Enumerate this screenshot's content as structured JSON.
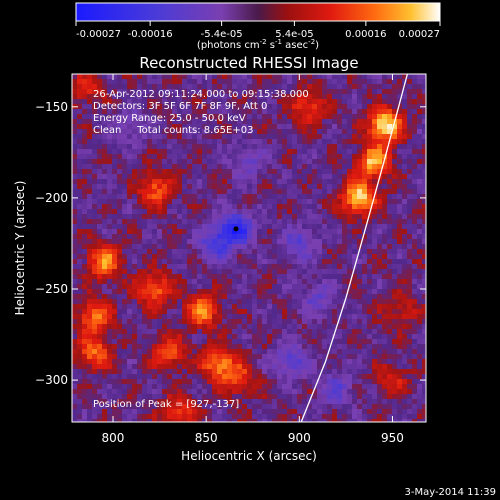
{
  "colorbar": {
    "ticks": [
      "-0.00027",
      "-0.00016",
      "-5.4e-05",
      "5.4e-05",
      "0.00016",
      "0.00027"
    ],
    "unit_label": "(photons cm",
    "unit_sup1": "-2",
    "unit_mid": " s",
    "unit_sup2": "-1",
    "unit_end": " asec",
    "unit_sup3": "-2",
    "unit_close": ")",
    "range": [
      -0.00027,
      0.00027
    ]
  },
  "chart_data": {
    "type": "heatmap",
    "title": "Reconstructed RHESSI Image",
    "xlabel": "Heliocentric X (arcsec)",
    "ylabel": "Heliocentric Y (arcsec)",
    "xlim": [
      778,
      968
    ],
    "ylim": [
      -323,
      -132
    ],
    "x_ticks": [
      800,
      850,
      900,
      950
    ],
    "y_ticks": [
      -150,
      -200,
      -250,
      -300
    ],
    "x_tick_labels": [
      "800",
      "850",
      "900",
      "950"
    ],
    "y_tick_labels": [
      "−150",
      "−200",
      "−250",
      "−300"
    ],
    "peak": [
      927,
      -137
    ],
    "limb_points": [
      [
        901,
        -323
      ],
      [
        914,
        -290
      ],
      [
        925,
        -255
      ],
      [
        936,
        -215
      ],
      [
        946,
        -178
      ],
      [
        958,
        -132
      ]
    ],
    "annotations": [
      "26-Apr-2012 09:11:24.000 to 09:15:38.000",
      "Detectors: 3F 5F 6F 7F 8F 9F, Att 0",
      "Energy Range: 25.0 - 50.0 keV",
      "Clean     Total counts: 8.65E+03"
    ],
    "peak_label": "Position of Peak = [927,-137]",
    "sources": [
      {
        "x": 946,
        "y": -160,
        "value": 0.00027
      },
      {
        "x": 932,
        "y": -200,
        "value": 0.00026
      },
      {
        "x": 940,
        "y": -180,
        "value": 0.00022
      },
      {
        "x": 905,
        "y": -150,
        "value": 0.00014
      },
      {
        "x": 823,
        "y": -195,
        "value": 0.00016
      },
      {
        "x": 795,
        "y": -235,
        "value": 0.00019
      },
      {
        "x": 822,
        "y": -250,
        "value": 0.00017
      },
      {
        "x": 790,
        "y": -265,
        "value": 0.00018
      },
      {
        "x": 848,
        "y": -262,
        "value": 0.00019
      },
      {
        "x": 790,
        "y": -285,
        "value": 0.00017
      },
      {
        "x": 830,
        "y": -285,
        "value": 0.00015
      },
      {
        "x": 857,
        "y": -291,
        "value": 0.0002
      },
      {
        "x": 868,
        "y": -300,
        "value": 0.00012
      },
      {
        "x": 785,
        "y": -140,
        "value": 0.00011
      },
      {
        "x": 835,
        "y": -318,
        "value": 0.00014
      },
      {
        "x": 955,
        "y": -262,
        "value": 9e-05
      },
      {
        "x": 950,
        "y": -300,
        "value": 9e-05
      },
      {
        "x": 866,
        "y": -217,
        "value": -0.00022
      },
      {
        "x": 855,
        "y": -225,
        "value": -0.00015
      },
      {
        "x": 900,
        "y": -225,
        "value": -0.00012
      },
      {
        "x": 895,
        "y": -290,
        "value": -0.00013
      },
      {
        "x": 910,
        "y": -255,
        "value": -0.0001
      },
      {
        "x": 920,
        "y": -305,
        "value": -0.00011
      },
      {
        "x": 810,
        "y": -160,
        "value": -8e-05
      },
      {
        "x": 872,
        "y": -180,
        "value": -9e-05
      }
    ]
  },
  "footer": {
    "timestamp": "3-May-2014 11:39"
  }
}
